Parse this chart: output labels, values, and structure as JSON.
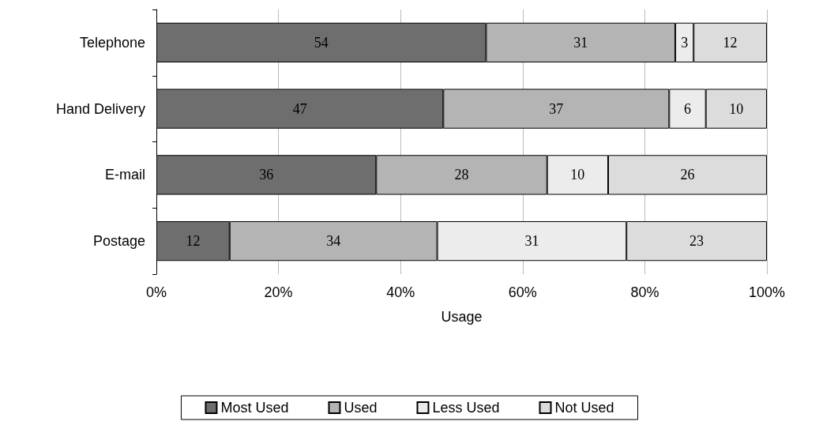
{
  "chart_data": {
    "type": "bar",
    "orientation": "horizontal",
    "stacked": true,
    "xlabel": "Usage",
    "categories": [
      "Telephone",
      "Hand Delivery",
      "E-mail",
      "Postage"
    ],
    "series": [
      {
        "name": "Most Used",
        "color": "#6e6e6e",
        "values": [
          54,
          47,
          36,
          12
        ]
      },
      {
        "name": "Used",
        "color": "#b4b4b4",
        "values": [
          31,
          37,
          28,
          34
        ]
      },
      {
        "name": "Less Used",
        "color": "#ececec",
        "values": [
          3,
          6,
          10,
          31
        ]
      },
      {
        "name": "Not Used",
        "color": "#dcdcdc",
        "values": [
          12,
          10,
          26,
          23
        ]
      }
    ],
    "xlim": [
      0,
      100
    ],
    "xticks": [
      {
        "value": 0,
        "label": "0%"
      },
      {
        "value": 20,
        "label": "20%"
      },
      {
        "value": 40,
        "label": "40%"
      },
      {
        "value": 60,
        "label": "60%"
      },
      {
        "value": 80,
        "label": "80%"
      },
      {
        "value": 100,
        "label": "100%"
      }
    ],
    "grid": "x",
    "legend": "bottom",
    "data_labels": true
  }
}
